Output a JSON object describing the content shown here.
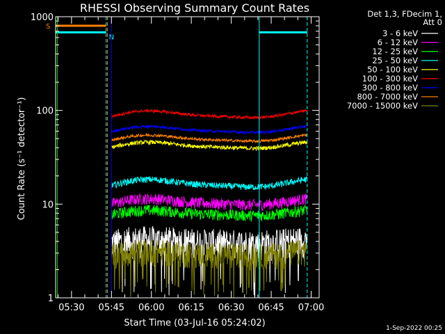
{
  "chart_data": {
    "type": "line",
    "title": "RHESSI Observing Summary Count Rates",
    "xlabel": "Start Time (03-Jul-16 05:24:02)",
    "ylabel": "Count Rate (s⁻¹ detector⁻¹)",
    "yscale": "log",
    "ylim": [
      1,
      1000
    ],
    "xlim": [
      "05:24:02",
      "07:03:00"
    ],
    "x_ticks": [
      "05:30",
      "05:45",
      "06:00",
      "06:15",
      "06:30",
      "06:45",
      "07:00"
    ],
    "y_ticks": [
      "1",
      "10",
      "100",
      "1000"
    ],
    "legend_header": [
      "Det 1,3, FDecim 1,",
      "Att 0"
    ],
    "legend_position": "right",
    "footer": "1-Sep-2022 00:25",
    "flags": [
      {
        "label": "S",
        "color": "#ff8000",
        "value": 800,
        "start": "05:24:02",
        "end": "05:43:00"
      },
      {
        "label": "N",
        "color": "#00ffff",
        "value": 680,
        "start": "05:24:02",
        "end": "05:43:00"
      },
      {
        "label": "",
        "color": "#00ffff",
        "value": 680,
        "start": "06:40:30",
        "end": "06:58:30"
      }
    ],
    "markers": [
      {
        "time": "05:24:40",
        "color": "#00cc00"
      },
      {
        "time": "05:43:00",
        "color": "#00ffff",
        "dashed": true
      },
      {
        "time": "05:43:30",
        "color": "#ff8000",
        "dashed": true
      },
      {
        "time": "05:45:00",
        "color": "#0000ff"
      },
      {
        "time": "06:40:30",
        "color": "#00ffff"
      },
      {
        "time": "06:58:30",
        "color": "#00ffff",
        "dashed": true
      }
    ],
    "data_start": "05:45:00",
    "data_end": "06:58:30",
    "series": [
      {
        "name": "3 - 6 keV",
        "color": "#ffffff",
        "base": 4.0,
        "amp": 0.05,
        "noise": 0.38,
        "spike": 0.05
      },
      {
        "name": "6 - 12 keV",
        "color": "#ff00ff",
        "base": 10.5,
        "amp": 0.08,
        "noise": 0.14,
        "spike": 0
      },
      {
        "name": "12 - 25 keV",
        "color": "#00ff00",
        "base": 8.0,
        "amp": 0.07,
        "noise": 0.14,
        "spike": 0
      },
      {
        "name": "25 - 50 keV",
        "color": "#00ffff",
        "base": 16.5,
        "amp": 0.1,
        "noise": 0.08,
        "spike": 0
      },
      {
        "name": "50 - 100 keV",
        "color": "#ffff00",
        "base": 42,
        "amp": 0.08,
        "noise": 0.05,
        "spike": 0
      },
      {
        "name": "100 - 300 keV",
        "color": "#ff0000",
        "base": 90,
        "amp": 0.09,
        "noise": 0.035,
        "spike": 0
      },
      {
        "name": "300 - 800 keV",
        "color": "#0000ff",
        "base": 62,
        "amp": 0.08,
        "noise": 0.035,
        "spike": 0
      },
      {
        "name": "800 - 7000 keV",
        "color": "#ff8000",
        "base": 50,
        "amp": 0.08,
        "noise": 0.035,
        "spike": 0
      },
      {
        "name": "7000 - 15000 keV",
        "color": "#808000",
        "base": 3.0,
        "amp": 0.05,
        "noise": 0.32,
        "spike": 0.08
      }
    ]
  }
}
